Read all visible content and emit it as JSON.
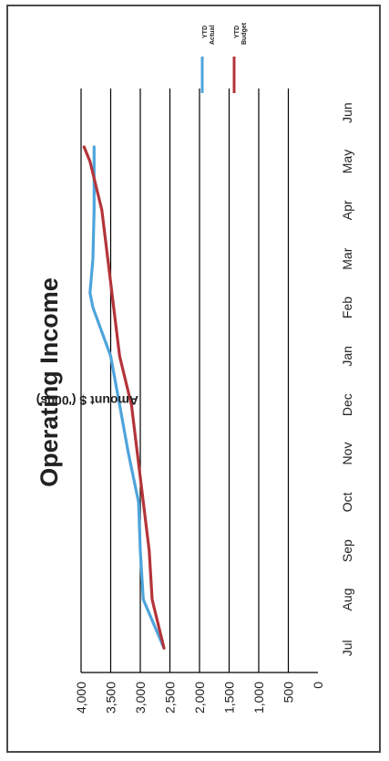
{
  "chart_data": {
    "type": "line",
    "title": "Operating Income",
    "xlabel": "",
    "ylabel": "Amount $ ('000s)",
    "categories": [
      "Jul",
      "Aug",
      "Sep",
      "Oct",
      "Nov",
      "Dec",
      "Jan",
      "Feb",
      "Mar",
      "Apr",
      "May",
      "Jun"
    ],
    "ylim": [
      0,
      4000
    ],
    "yticks": [
      0,
      500,
      1000,
      1500,
      2000,
      2500,
      3000,
      3500,
      4000
    ],
    "ytick_labels": [
      "0",
      "500",
      "1,000",
      "1,500",
      "2,000",
      "2,500",
      "3,000",
      "3,500",
      "4,000"
    ],
    "grid": true,
    "legend_position": "top-right",
    "series": [
      {
        "name": "YTD Actual",
        "color": "#4ea4dc",
        "x": [
          0,
          1,
          2,
          3,
          4,
          5,
          6,
          7,
          7.3,
          8,
          9,
          10,
          10.3
        ],
        "values": [
          2600,
          2950,
          3000,
          3030,
          3200,
          3350,
          3500,
          3800,
          3850,
          3800,
          3780,
          3780,
          3780
        ]
      },
      {
        "name": "YTD Budget",
        "color": "#b3343a",
        "x": [
          0,
          1,
          2,
          3,
          4,
          5,
          6,
          7,
          8,
          9,
          10,
          10.3
        ],
        "values": [
          2600,
          2800,
          2850,
          2950,
          3050,
          3150,
          3350,
          3450,
          3550,
          3650,
          3850,
          3950
        ]
      }
    ]
  }
}
